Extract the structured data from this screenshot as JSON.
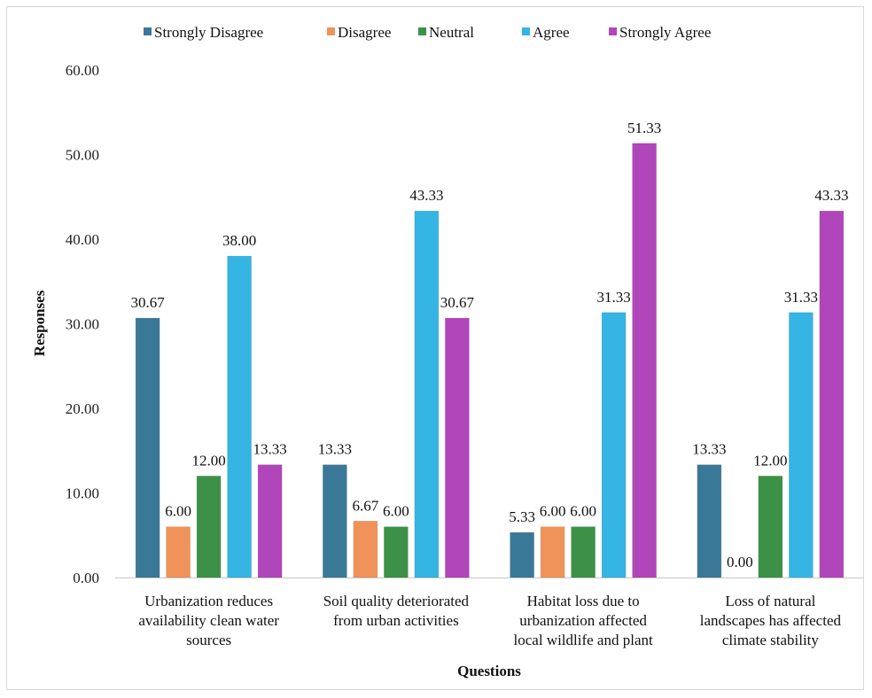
{
  "chart_data": {
    "type": "bar",
    "title": "",
    "xlabel": "Questions",
    "ylabel": "Responses",
    "ylim": [
      0,
      60
    ],
    "yticks": [
      "0.00",
      "10.00",
      "20.00",
      "30.00",
      "40.00",
      "50.00",
      "60.00"
    ],
    "grid": false,
    "legend_position": "top",
    "categories": [
      [
        "Urbanization  reduces",
        "availability clean water",
        "sources"
      ],
      [
        "Soil quality deteriorated",
        "from urban activities"
      ],
      [
        "Habitat loss due to",
        "urbanization affected",
        "local wildlife and plant"
      ],
      [
        "Loss of natural",
        "landscapes has affected",
        "climate stability"
      ]
    ],
    "series": [
      {
        "name": "Strongly Disagree",
        "color": "#3a7898",
        "values": [
          30.67,
          13.33,
          5.33,
          13.33
        ],
        "labels": [
          "30.67",
          "13.33",
          "5.33",
          "13.33"
        ]
      },
      {
        "name": "Disagree",
        "color": "#f0935a",
        "values": [
          6.0,
          6.67,
          6.0,
          0.0
        ],
        "labels": [
          "6.00",
          "6.67",
          "6.00",
          "0.00"
        ]
      },
      {
        "name": "Neutral",
        "color": "#3c9146",
        "values": [
          12.0,
          6.0,
          6.0,
          12.0
        ],
        "labels": [
          "12.00",
          "6.00",
          "6.00",
          "12.00"
        ]
      },
      {
        "name": "Agree",
        "color": "#35b5e3",
        "values": [
          38.0,
          43.33,
          31.33,
          31.33
        ],
        "labels": [
          "38.00",
          "43.33",
          "31.33",
          "31.33"
        ]
      },
      {
        "name": "Strongly Agree",
        "color": "#b046b9",
        "values": [
          13.33,
          30.67,
          51.33,
          43.33
        ],
        "labels": [
          "13.33",
          "30.67",
          "51.33",
          "43.33"
        ]
      }
    ]
  }
}
